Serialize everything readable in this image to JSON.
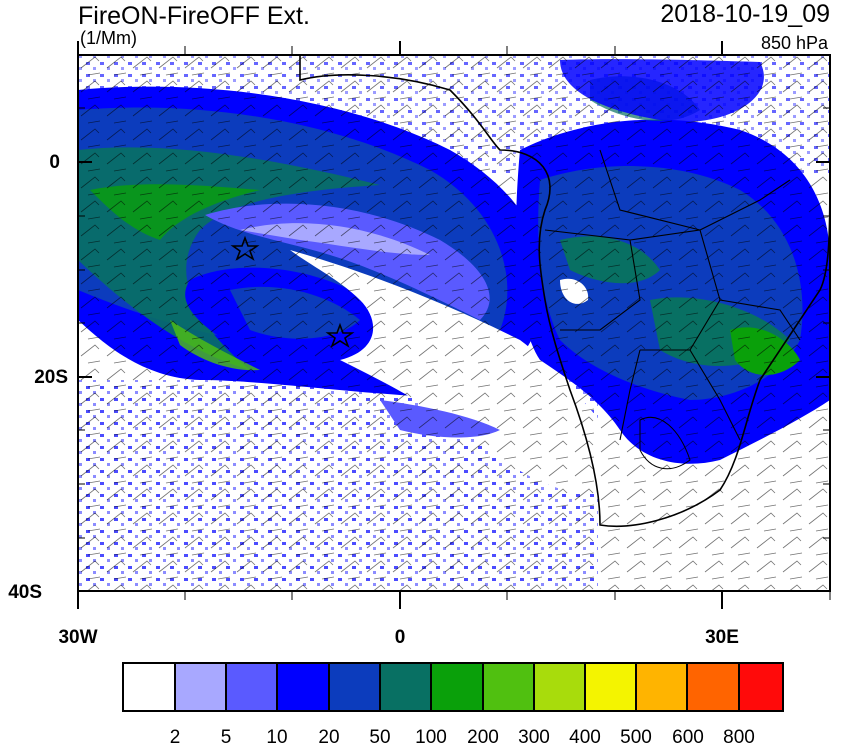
{
  "title": {
    "left": "FireON-FireOFF Ext.",
    "units": "(1/Mm)",
    "right": "2018-10-19_09",
    "level": "850 hPa"
  },
  "axes": {
    "y_ticks": [
      "0",
      "20S",
      "40S"
    ],
    "x_ticks": [
      "30W",
      "0",
      "30E"
    ],
    "lon_range": [
      -30,
      40
    ],
    "lat_range": [
      -40,
      10
    ]
  },
  "colorbar": {
    "labels": [
      "2",
      "5",
      "10",
      "20",
      "50",
      "100",
      "200",
      "300",
      "400",
      "500",
      "600",
      "800"
    ],
    "colors": [
      "#ffffff",
      "#a8a8ff",
      "#5a5aff",
      "#0000ff",
      "#0c3cbd",
      "#087063",
      "#0aa00a",
      "#50c010",
      "#a8dc0c",
      "#f4f400",
      "#ffb400",
      "#ff6400",
      "#ff0a0a"
    ]
  },
  "markers": [
    {
      "name": "star-west",
      "lon": -14.5,
      "lat": -8
    },
    {
      "name": "star-center",
      "lon": -5.5,
      "lat": -16
    }
  ]
}
